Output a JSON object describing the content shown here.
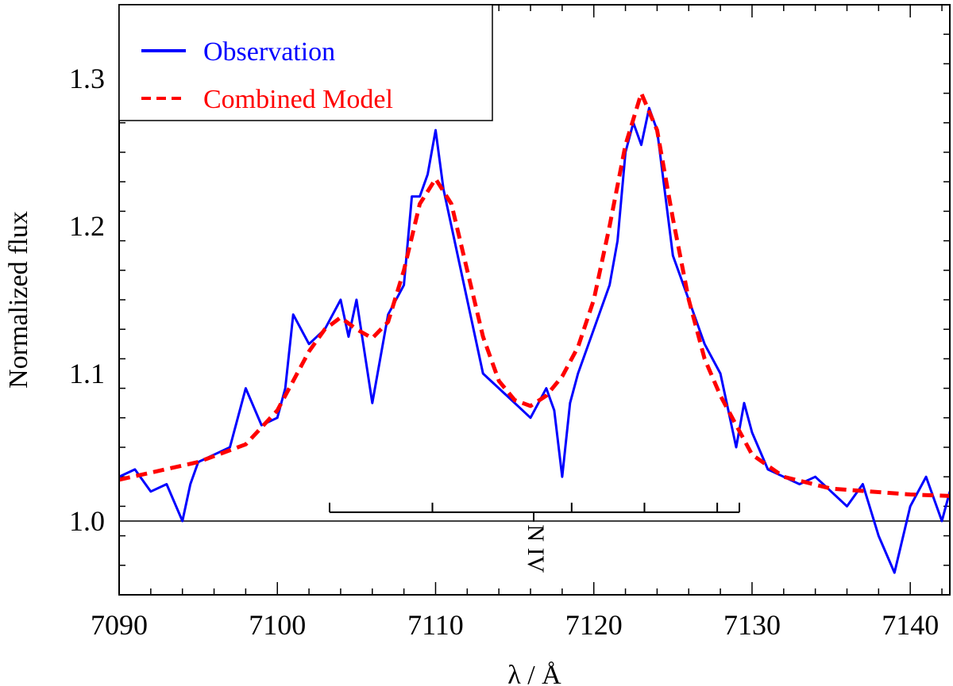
{
  "chart_data": {
    "type": "line",
    "xlabel": "λ / Å",
    "ylabel": "Normalized flux",
    "xlim": [
      7090,
      7142.5
    ],
    "ylim": [
      0.95,
      1.35
    ],
    "xticks": [
      7090,
      7100,
      7110,
      7120,
      7130,
      7140
    ],
    "yticks": [
      1.0,
      1.1,
      1.2,
      1.3
    ],
    "x_minor_step": 2,
    "y_minor_step": 0.02,
    "reference_line": 1.0,
    "legend_position": "top-left",
    "series": [
      {
        "name": "Observation",
        "color": "#0000ff",
        "style": "solid",
        "points": [
          [
            7090,
            1.03
          ],
          [
            7091,
            1.035
          ],
          [
            7092,
            1.02
          ],
          [
            7093,
            1.025
          ],
          [
            7094,
            1.0
          ],
          [
            7094.5,
            1.025
          ],
          [
            7095,
            1.04
          ],
          [
            7096,
            1.045
          ],
          [
            7097,
            1.05
          ],
          [
            7098,
            1.09
          ],
          [
            7099,
            1.065
          ],
          [
            7100,
            1.07
          ],
          [
            7100.5,
            1.09
          ],
          [
            7101,
            1.14
          ],
          [
            7102,
            1.12
          ],
          [
            7103,
            1.13
          ],
          [
            7104,
            1.15
          ],
          [
            7104.5,
            1.125
          ],
          [
            7105,
            1.15
          ],
          [
            7106,
            1.08
          ],
          [
            7107,
            1.14
          ],
          [
            7108,
            1.16
          ],
          [
            7108.5,
            1.22
          ],
          [
            7109,
            1.22
          ],
          [
            7109.5,
            1.235
          ],
          [
            7110,
            1.265
          ],
          [
            7110.5,
            1.225
          ],
          [
            7111,
            1.2
          ],
          [
            7112,
            1.15
          ],
          [
            7113,
            1.1
          ],
          [
            7114,
            1.09
          ],
          [
            7115,
            1.08
          ],
          [
            7116,
            1.07
          ],
          [
            7117,
            1.09
          ],
          [
            7117.5,
            1.075
          ],
          [
            7118,
            1.03
          ],
          [
            7118.5,
            1.08
          ],
          [
            7119,
            1.1
          ],
          [
            7120,
            1.13
          ],
          [
            7121,
            1.16
          ],
          [
            7121.5,
            1.19
          ],
          [
            7122,
            1.25
          ],
          [
            7122.5,
            1.27
          ],
          [
            7123,
            1.255
          ],
          [
            7123.5,
            1.28
          ],
          [
            7124,
            1.265
          ],
          [
            7125,
            1.18
          ],
          [
            7126,
            1.15
          ],
          [
            7127,
            1.12
          ],
          [
            7128,
            1.1
          ],
          [
            7128.5,
            1.075
          ],
          [
            7129,
            1.05
          ],
          [
            7129.5,
            1.08
          ],
          [
            7130,
            1.06
          ],
          [
            7131,
            1.035
          ],
          [
            7132,
            1.03
          ],
          [
            7133,
            1.025
          ],
          [
            7134,
            1.03
          ],
          [
            7135,
            1.02
          ],
          [
            7136,
            1.01
          ],
          [
            7137,
            1.025
          ],
          [
            7138,
            0.99
          ],
          [
            7139,
            0.965
          ],
          [
            7140,
            1.01
          ],
          [
            7141,
            1.03
          ],
          [
            7142,
            1.0
          ],
          [
            7142.5,
            1.02
          ]
        ]
      },
      {
        "name": "Combined Model",
        "color": "#ff0000",
        "style": "dashed",
        "points": [
          [
            7090,
            1.028
          ],
          [
            7095,
            1.04
          ],
          [
            7098,
            1.052
          ],
          [
            7100,
            1.075
          ],
          [
            7101,
            1.095
          ],
          [
            7102,
            1.115
          ],
          [
            7103,
            1.13
          ],
          [
            7104,
            1.138
          ],
          [
            7105,
            1.13
          ],
          [
            7106,
            1.124
          ],
          [
            7107,
            1.135
          ],
          [
            7108,
            1.17
          ],
          [
            7109,
            1.215
          ],
          [
            7110,
            1.232
          ],
          [
            7111,
            1.215
          ],
          [
            7112,
            1.17
          ],
          [
            7113,
            1.125
          ],
          [
            7114,
            1.095
          ],
          [
            7115,
            1.082
          ],
          [
            7116,
            1.078
          ],
          [
            7117,
            1.085
          ],
          [
            7118,
            1.098
          ],
          [
            7119,
            1.118
          ],
          [
            7120,
            1.15
          ],
          [
            7121,
            1.2
          ],
          [
            7122,
            1.255
          ],
          [
            7123,
            1.29
          ],
          [
            7124,
            1.265
          ],
          [
            7125,
            1.205
          ],
          [
            7126,
            1.15
          ],
          [
            7127,
            1.11
          ],
          [
            7128,
            1.085
          ],
          [
            7129,
            1.065
          ],
          [
            7130,
            1.045
          ],
          [
            7132,
            1.03
          ],
          [
            7135,
            1.022
          ],
          [
            7140,
            1.018
          ],
          [
            7142.5,
            1.017
          ]
        ]
      }
    ],
    "line_marker": {
      "label": "N IV",
      "x_start": 7103.3,
      "x_end": 7129.2,
      "center": 7116.2,
      "ticks": [
        7103.3,
        7109.8,
        7118.6,
        7123.2,
        7127.8,
        7129.2
      ],
      "y": 1.006
    }
  }
}
